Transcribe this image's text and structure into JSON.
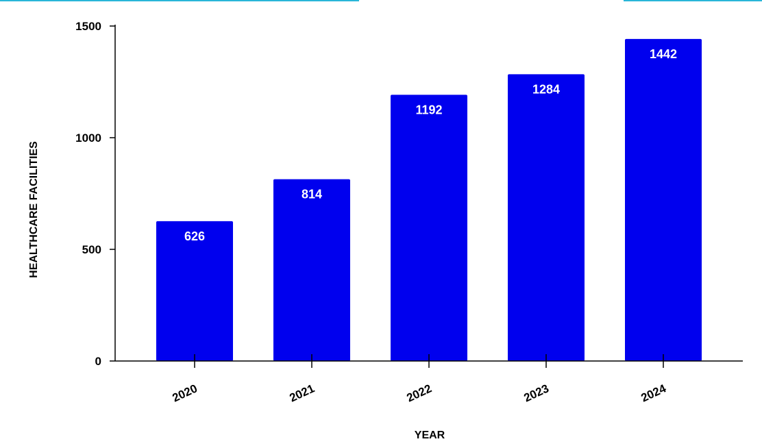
{
  "chart_data": {
    "type": "bar",
    "title": "",
    "xlabel": "YEAR",
    "ylabel": "HEALTHCARE FACILITIES",
    "categories": [
      "2020",
      "2021",
      "2022",
      "2023",
      "2024"
    ],
    "values": [
      626,
      814,
      1192,
      1284,
      1442
    ],
    "ylim": [
      0,
      1500
    ],
    "yticks": [
      0,
      500,
      1000,
      1500
    ],
    "data_labels": [
      "626",
      "814",
      "1192",
      "1284",
      "1442"
    ],
    "grid": false,
    "legend": "none",
    "bar_color": "#0000ee",
    "label_color": "#ffffff",
    "axis_color": "#000000"
  }
}
